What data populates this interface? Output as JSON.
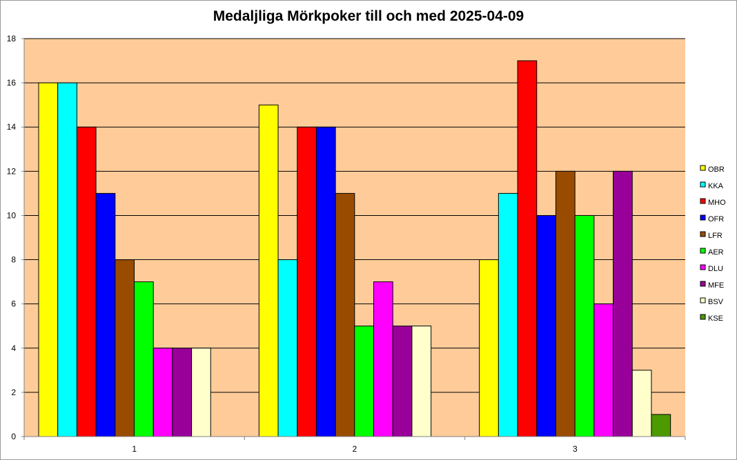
{
  "chart_data": {
    "type": "bar",
    "title": "Medaljliga Mörkpoker till och med 2025-04-09",
    "xlabel": "",
    "ylabel": "",
    "categories": [
      "1",
      "2",
      "3"
    ],
    "ylim": [
      0,
      18
    ],
    "yticks": [
      0,
      2,
      4,
      6,
      8,
      10,
      12,
      14,
      16,
      18
    ],
    "grid": true,
    "legend_position": "right",
    "plot_background": "#FFCC99",
    "series": [
      {
        "name": "OBR",
        "color": "#FFFF00",
        "values": [
          16,
          15,
          8
        ]
      },
      {
        "name": "KKA",
        "color": "#00FFFF",
        "values": [
          16,
          8,
          11
        ]
      },
      {
        "name": "MHO",
        "color": "#FF0000",
        "values": [
          14,
          14,
          17
        ]
      },
      {
        "name": "OFR",
        "color": "#0000FF",
        "values": [
          11,
          14,
          10
        ]
      },
      {
        "name": "LFR",
        "color": "#994C00",
        "values": [
          8,
          11,
          12
        ]
      },
      {
        "name": "AER",
        "color": "#00FF00",
        "values": [
          7,
          5,
          10
        ]
      },
      {
        "name": "DLU",
        "color": "#FF00FF",
        "values": [
          4,
          7,
          6
        ]
      },
      {
        "name": "MFE",
        "color": "#990099",
        "values": [
          4,
          5,
          12
        ]
      },
      {
        "name": "BSV",
        "color": "#FFFFCC",
        "values": [
          4,
          5,
          3
        ]
      },
      {
        "name": "KSE",
        "color": "#4C9900",
        "values": [
          0,
          0,
          1
        ]
      }
    ]
  }
}
